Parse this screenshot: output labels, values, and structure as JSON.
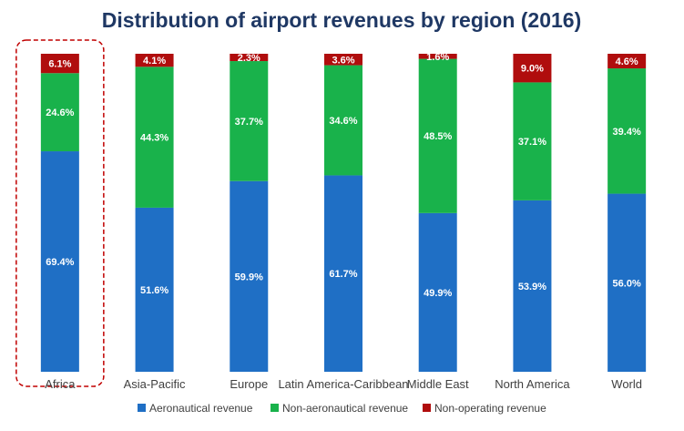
{
  "chart_data": {
    "type": "bar",
    "stacked": true,
    "percent": true,
    "title": "Distribution of airport revenues by region (2016)",
    "categories": [
      "Africa",
      "Asia-Pacific",
      "Europe",
      "Latin America-Caribbean",
      "Middle East",
      "North America",
      "World"
    ],
    "series": [
      {
        "name": "Aeronautical revenue",
        "color": "#1f6fc5",
        "values": [
          69.4,
          51.6,
          59.9,
          61.7,
          49.9,
          53.9,
          56.0
        ],
        "labels": [
          "69.4%",
          "51.6%",
          "59.9%",
          "61.7%",
          "49.9%",
          "53.9%",
          "56.0%"
        ]
      },
      {
        "name": "Non-aeronautical revenue",
        "color": "#19b24b",
        "values": [
          24.6,
          44.3,
          37.7,
          34.6,
          48.5,
          37.1,
          39.4
        ],
        "labels": [
          "24.6%",
          "44.3%",
          "37.7%",
          "34.6%",
          "48.5%",
          "37.1%",
          "39.4%"
        ]
      },
      {
        "name": "Non-operating revenue",
        "color": "#b00d0d",
        "values": [
          6.1,
          4.1,
          2.3,
          3.6,
          1.6,
          9.0,
          4.6
        ],
        "labels": [
          "6.1%",
          "4.1%",
          "2.3%",
          "3.6%",
          "1.6%",
          "9.0%",
          "4.6%"
        ]
      }
    ],
    "ylim": [
      0,
      100
    ],
    "grid": false,
    "legend_position": "bottom",
    "highlighted_category": "Africa"
  }
}
